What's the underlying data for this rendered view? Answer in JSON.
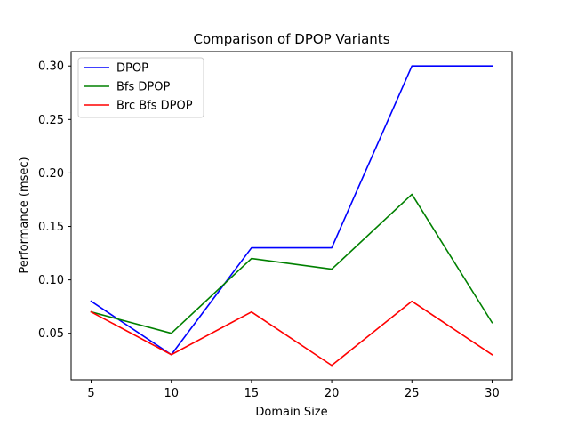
{
  "chart_data": {
    "type": "line",
    "title": "Comparison of DPOP Variants",
    "xlabel": "Domain Size",
    "ylabel": "Performance (msec)",
    "x": [
      5,
      10,
      15,
      20,
      25,
      30
    ],
    "xticks": [
      "5",
      "10",
      "15",
      "20",
      "25",
      "30"
    ],
    "yticks": [
      "0.05",
      "0.10",
      "0.15",
      "0.20",
      "0.25",
      "0.30"
    ],
    "xlim": [
      3.75,
      31.25
    ],
    "ylim": [
      0.0065,
      0.3135
    ],
    "grid": false,
    "legend_position": "upper-left",
    "series": [
      {
        "name": "DPOP",
        "color": "#0000ff",
        "values": [
          0.08,
          0.03,
          0.13,
          0.13,
          0.3,
          0.3
        ]
      },
      {
        "name": "Bfs DPOP",
        "color": "#008000",
        "values": [
          0.07,
          0.05,
          0.12,
          0.11,
          0.18,
          0.06
        ]
      },
      {
        "name": "Brc Bfs DPOP",
        "color": "#ff0000",
        "values": [
          0.07,
          0.03,
          0.07,
          0.02,
          0.08,
          0.03
        ]
      }
    ]
  }
}
